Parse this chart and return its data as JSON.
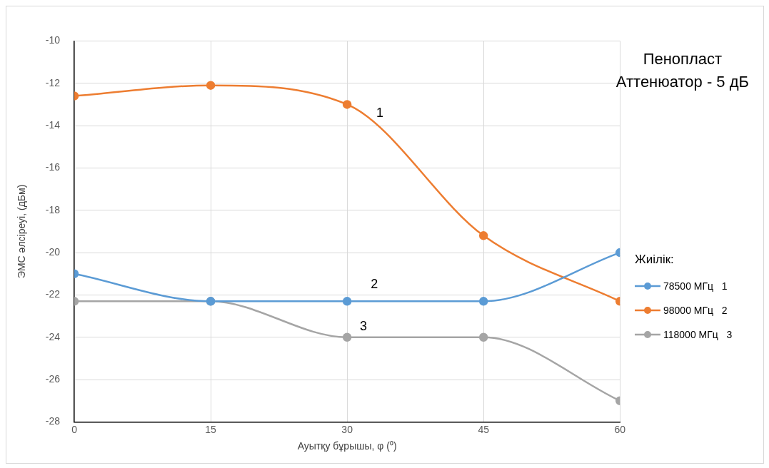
{
  "chart_data": {
    "type": "line",
    "title": "Пенопласт",
    "subtitle": "Аттенюатор - 5 дБ",
    "xlabel": "Ауытқу бұрышы, φ (⁰)",
    "ylabel": "ЭМС әлсіреуі, (дБм)",
    "legend_title": "Жиілік:",
    "x": [
      0,
      15,
      30,
      45,
      60
    ],
    "xlim": [
      0,
      60
    ],
    "xticks": [
      0,
      15,
      30,
      45,
      60
    ],
    "ylim": [
      -28,
      -10
    ],
    "yticks": [
      -28,
      -26,
      -24,
      -22,
      -20,
      -18,
      -16,
      -14,
      -12,
      -10
    ],
    "series": [
      {
        "name": "78500 МГц   1",
        "color": "#5b9bd5",
        "values": [
          -21,
          -22.3,
          -22.3,
          -22.3,
          -20
        ]
      },
      {
        "name": "98000 МГц   2",
        "color": "#ed7d31",
        "values": [
          -12.6,
          -12.1,
          -13,
          -19.2,
          -22.3
        ]
      },
      {
        "name": "118000 МГц   3",
        "color": "#a5a5a5",
        "values": [
          -22.3,
          -22.3,
          -24,
          -24,
          -27
        ]
      }
    ],
    "annotations": [
      "1",
      "2",
      "3"
    ],
    "grid": true,
    "legend": "right",
    "marker": "circle",
    "line_style": "solid"
  }
}
